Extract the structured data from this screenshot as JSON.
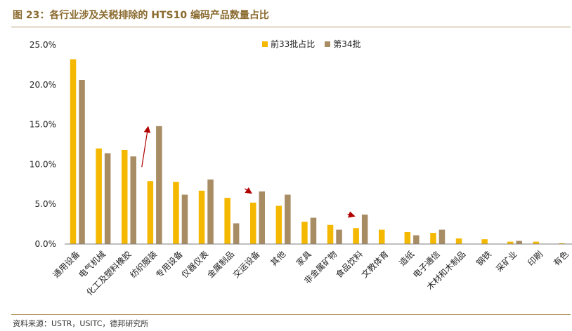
{
  "title": "图 23：各行业涉及关税排除的 HTS10 编码产品数量占比",
  "source": "资料来源：USTR，USITC，德邦研究所",
  "colors": {
    "series1": "#F5B800",
    "series2": "#A88C64",
    "arrow": "#B00000",
    "axis": "#7F7F7F",
    "title": "#8A6A2E"
  },
  "chart_data": {
    "type": "bar",
    "title": "",
    "xlabel": "",
    "ylabel": "",
    "ylim": [
      0,
      25
    ],
    "y_ticks": [
      "0.0%",
      "5.0%",
      "10.0%",
      "15.0%",
      "20.0%",
      "25.0%"
    ],
    "grid": false,
    "legend_position": "top-center",
    "categories": [
      "通用设备",
      "电气机械",
      "化工及塑料橡胶",
      "纺织服装",
      "专用设备",
      "仪器仪表",
      "金属制品",
      "交运设备",
      "其他",
      "家具",
      "非金属矿物",
      "食品饮料",
      "文教体育",
      "造纸",
      "电子通信",
      "木材和木制品",
      "钢铁",
      "采矿业",
      "印刷",
      "有色"
    ],
    "series": [
      {
        "name": "前33批占比",
        "values": [
          23.2,
          12.0,
          11.8,
          7.9,
          7.8,
          6.7,
          5.8,
          5.2,
          4.8,
          2.8,
          2.4,
          2.0,
          1.8,
          1.5,
          1.4,
          0.7,
          0.6,
          0.3,
          0.3,
          0.1
        ]
      },
      {
        "name": "第34批",
        "values": [
          20.6,
          11.4,
          11.0,
          14.8,
          6.2,
          8.1,
          2.6,
          6.6,
          6.2,
          3.3,
          1.8,
          3.7,
          0.0,
          1.1,
          1.8,
          0.0,
          0.0,
          0.4,
          0.0,
          0.0
        ]
      }
    ],
    "annotations": [
      {
        "type": "arrow",
        "from_category": "纺织服装"
      },
      {
        "type": "arrow",
        "from_category": "交运设备"
      },
      {
        "type": "arrow",
        "from_category": "食品饮料"
      }
    ]
  }
}
